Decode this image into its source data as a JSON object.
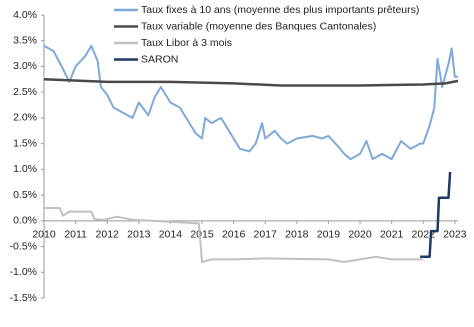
{
  "chart_data": {
    "type": "line",
    "xlim": [
      2010,
      2023.1
    ],
    "xticks": [
      2010,
      2011,
      2012,
      2013,
      2014,
      2015,
      2016,
      2017,
      2018,
      2019,
      2020,
      2021,
      2022,
      2023
    ],
    "ylim": [
      -1.5,
      4.0
    ],
    "yticks": [
      {
        "value": -1.5,
        "label": "-1.5%"
      },
      {
        "value": -1.0,
        "label": "-1.0%"
      },
      {
        "value": -0.5,
        "label": "-0.5%"
      },
      {
        "value": 0,
        "label": "0.0%"
      },
      {
        "value": 0.5,
        "label": "0.5%"
      },
      {
        "value": 1.0,
        "label": "1.0%"
      },
      {
        "value": 1.5,
        "label": "1.5%"
      },
      {
        "value": 2.0,
        "label": "2.0%"
      },
      {
        "value": 2.5,
        "label": "2.5%"
      },
      {
        "value": 3.0,
        "label": "3.0%"
      },
      {
        "value": 3.5,
        "label": "3.5%"
      },
      {
        "value": 4.0,
        "label": "4.0%"
      }
    ],
    "grid": false,
    "series": [
      {
        "name": "Taux fixes à 10 ans (moyenne des plus importants prêteurs)",
        "color": "#7ea9da",
        "x": [
          2010,
          2010.3,
          2010.6,
          2010.8,
          2011.0,
          2011.3,
          2011.5,
          2011.7,
          2011.8,
          2012.0,
          2012.2,
          2012.5,
          2012.8,
          2013.0,
          2013.3,
          2013.5,
          2013.7,
          2014.0,
          2014.3,
          2014.5,
          2014.8,
          2015.0,
          2015.1,
          2015.3,
          2015.6,
          2015.8,
          2016.0,
          2016.2,
          2016.5,
          2016.7,
          2016.9,
          2017.0,
          2017.3,
          2017.5,
          2017.7,
          2018.0,
          2018.5,
          2018.8,
          2019.0,
          2019.3,
          2019.5,
          2019.7,
          2020.0,
          2020.2,
          2020.4,
          2020.7,
          2021.0,
          2021.3,
          2021.6,
          2021.9,
          2022.0,
          2022.2,
          2022.35,
          2022.45,
          2022.6,
          2022.8,
          2022.9,
          2023.0,
          2023.1
        ],
        "values": [
          3.4,
          3.3,
          2.95,
          2.7,
          3.0,
          3.2,
          3.4,
          3.1,
          2.6,
          2.45,
          2.2,
          2.1,
          2.0,
          2.3,
          2.05,
          2.4,
          2.6,
          2.3,
          2.2,
          2.0,
          1.7,
          1.6,
          2.0,
          1.9,
          2.0,
          1.8,
          1.6,
          1.4,
          1.35,
          1.5,
          1.9,
          1.6,
          1.75,
          1.6,
          1.5,
          1.6,
          1.65,
          1.6,
          1.65,
          1.45,
          1.3,
          1.2,
          1.3,
          1.55,
          1.2,
          1.3,
          1.2,
          1.55,
          1.4,
          1.5,
          1.5,
          1.85,
          2.2,
          3.15,
          2.6,
          3.05,
          3.35,
          2.8,
          2.8
        ]
      },
      {
        "name": "Taux variable (moyenne des Banques Cantonales)",
        "color": "#4a4a4a",
        "x": [
          2010,
          2012,
          2014,
          2016,
          2017.5,
          2020,
          2022,
          2022.7,
          2023.1
        ],
        "values": [
          2.75,
          2.7,
          2.7,
          2.67,
          2.63,
          2.63,
          2.65,
          2.67,
          2.72
        ]
      },
      {
        "name": "Taux Libor à 3 mois",
        "color": "#c0c0c0",
        "x": [
          2010,
          2010.5,
          2010.6,
          2010.8,
          2011.5,
          2011.6,
          2011.9,
          2012.3,
          2012.8,
          2014.9,
          2015.0,
          2015.3,
          2016,
          2017,
          2019,
          2019.5,
          2020.5,
          2021,
          2022
        ],
        "values": [
          0.25,
          0.25,
          0.1,
          0.18,
          0.18,
          0.03,
          0.02,
          0.08,
          0.02,
          -0.05,
          -0.8,
          -0.75,
          -0.75,
          -0.73,
          -0.75,
          -0.8,
          -0.7,
          -0.75,
          -0.75
        ]
      },
      {
        "name": "SARON",
        "color": "#1f3864",
        "x": [
          2021.9,
          2022.2,
          2022.25,
          2022.45,
          2022.5,
          2022.8,
          2022.85
        ],
        "values": [
          -0.7,
          -0.7,
          -0.2,
          -0.2,
          0.45,
          0.45,
          0.95
        ]
      }
    ]
  }
}
